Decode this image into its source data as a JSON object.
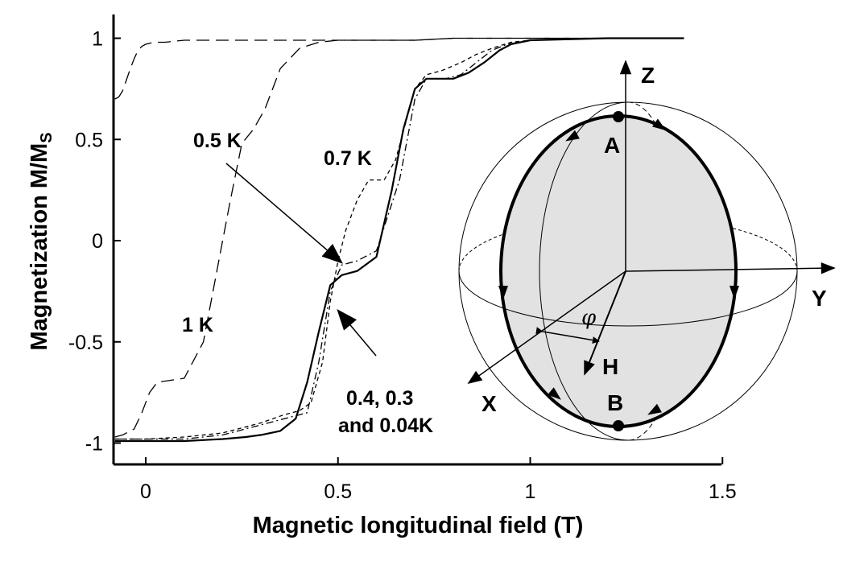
{
  "chart_data": {
    "type": "line",
    "xlabel": "Magnetic longitudinal field (T)",
    "ylabel": "Magnetization M/M",
    "ylabel_subscript": "S",
    "xlim": [
      -0.08,
      1.5
    ],
    "ylim": [
      -1.1,
      1.1
    ],
    "x_ticks": [
      0,
      0.5,
      1,
      1.5
    ],
    "x_tick_labels": [
      "0",
      "0.5",
      "1",
      "1.5"
    ],
    "y_ticks": [
      1,
      0.5,
      0,
      -0.5,
      -1
    ],
    "y_tick_labels": [
      "1",
      "0.5",
      "0",
      "-0.5",
      "-1"
    ],
    "grid": false,
    "series": [
      {
        "name": "1 K",
        "style": "long-dash",
        "x": [
          -0.08,
          -0.06,
          -0.03,
          -0.01,
          0.0,
          0.01,
          0.03,
          0.1,
          0.15,
          0.2,
          0.22,
          0.25,
          0.28,
          0.31,
          0.33,
          0.35,
          0.4,
          0.45,
          0.5,
          0.55,
          0.6,
          0.7,
          0.8,
          0.9,
          1.0,
          1.1,
          1.2,
          1.3,
          1.4
        ],
        "y": [
          -0.97,
          -0.96,
          -0.93,
          -0.85,
          -0.8,
          -0.75,
          -0.7,
          -0.68,
          -0.5,
          0.0,
          0.2,
          0.48,
          0.55,
          0.65,
          0.75,
          0.85,
          0.95,
          0.98,
          0.99,
          0.99,
          0.99,
          0.99,
          1.0,
          1.0,
          1.0,
          1.0,
          1.0,
          1.0,
          1.0
        ]
      },
      {
        "name": "1 K",
        "style": "long-dash",
        "x": [
          -0.08,
          -0.07,
          -0.06,
          -0.04,
          -0.03,
          -0.02,
          -0.01,
          0.0,
          0.02,
          0.05,
          0.1,
          0.2,
          0.3,
          0.4,
          0.5,
          0.6,
          0.7,
          0.8,
          0.9,
          1.0,
          1.1,
          1.2,
          1.3,
          1.4
        ],
        "y": [
          0.7,
          0.71,
          0.74,
          0.85,
          0.9,
          0.94,
          0.96,
          0.97,
          0.98,
          0.98,
          0.99,
          0.99,
          0.99,
          0.99,
          0.99,
          0.99,
          0.99,
          1.0,
          1.0,
          1.0,
          1.0,
          1.0,
          1.0,
          1.0
        ]
      },
      {
        "name": "0.7 K",
        "style": "short-dash",
        "x": [
          -0.08,
          0.0,
          0.1,
          0.2,
          0.3,
          0.36,
          0.4,
          0.43,
          0.46,
          0.48,
          0.5,
          0.52,
          0.55,
          0.58,
          0.62,
          0.65,
          0.7,
          0.73,
          0.77,
          0.82,
          0.86,
          0.9,
          0.95,
          1.0,
          1.2,
          1.4
        ],
        "y": [
          -0.98,
          -0.98,
          -0.97,
          -0.95,
          -0.9,
          -0.86,
          -0.84,
          -0.8,
          -0.6,
          -0.3,
          -0.1,
          0.05,
          0.2,
          0.3,
          0.3,
          0.4,
          0.75,
          0.82,
          0.84,
          0.88,
          0.92,
          0.95,
          0.98,
          0.99,
          1.0,
          1.0
        ]
      },
      {
        "name": "0.5 K",
        "style": "dash-dot",
        "x": [
          -0.08,
          0.0,
          0.1,
          0.2,
          0.28,
          0.34,
          0.38,
          0.42,
          0.45,
          0.48,
          0.51,
          0.55,
          0.6,
          0.66,
          0.7,
          0.73,
          0.78,
          0.82,
          0.86,
          0.9,
          0.94,
          1.0,
          1.2,
          1.4
        ],
        "y": [
          -0.98,
          -0.98,
          -0.98,
          -0.96,
          -0.92,
          -0.89,
          -0.87,
          -0.85,
          -0.6,
          -0.25,
          -0.12,
          -0.1,
          -0.05,
          0.3,
          0.7,
          0.8,
          0.8,
          0.82,
          0.88,
          0.94,
          0.97,
          0.99,
          1.0,
          1.0
        ]
      },
      {
        "name": "0.4, 0.3 and 0.04K",
        "style": "solid",
        "x": [
          -0.08,
          0.0,
          0.1,
          0.2,
          0.26,
          0.3,
          0.35,
          0.39,
          0.42,
          0.45,
          0.48,
          0.51,
          0.55,
          0.6,
          0.64,
          0.67,
          0.7,
          0.73,
          0.76,
          0.8,
          0.84,
          0.88,
          0.92,
          0.95,
          1.0,
          1.2,
          1.4
        ],
        "y": [
          -0.99,
          -0.99,
          -0.99,
          -0.98,
          -0.97,
          -0.96,
          -0.94,
          -0.88,
          -0.7,
          -0.45,
          -0.22,
          -0.17,
          -0.15,
          -0.08,
          0.25,
          0.55,
          0.75,
          0.8,
          0.8,
          0.8,
          0.83,
          0.88,
          0.94,
          0.97,
          0.99,
          1.0,
          1.0
        ]
      }
    ],
    "annotations": {
      "label_1k": "1 K",
      "label_07k": "0.7 K",
      "label_05k": "0.5 K",
      "label_low_line1": "0.4,  0.3",
      "label_low_line2": "and  0.04K"
    },
    "inset": {
      "axis_z": "Z",
      "axis_y": "Y",
      "axis_x": "X",
      "point_a": "A",
      "point_b": "B",
      "field_h": "H",
      "angle": "φ"
    }
  }
}
